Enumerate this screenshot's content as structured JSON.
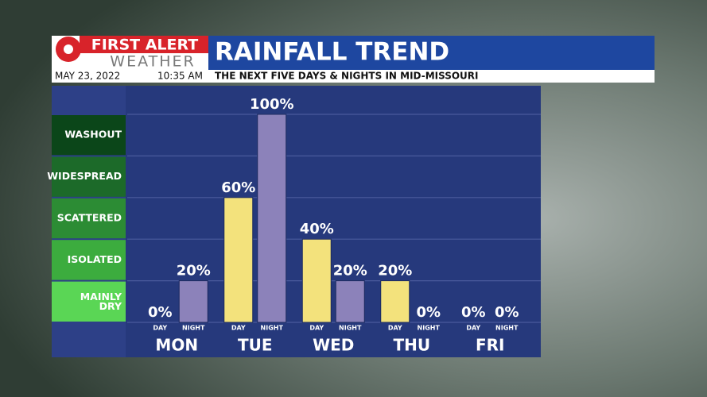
{
  "header": {
    "logo_top": "FIRST ALERT",
    "logo_bottom": "WEATHER",
    "date": "MAY 23, 2022",
    "time": "10:35 AM",
    "subtitle": "THE NEXT FIVE DAYS & NIGHTS IN MID-MISSOURI"
  },
  "chart_data": {
    "type": "bar",
    "title": "RAINFALL TREND",
    "categories": [
      "MON",
      "TUE",
      "WED",
      "THU",
      "FRI"
    ],
    "series": [
      {
        "name": "DAY",
        "color": "#f3e27c",
        "values": [
          0,
          60,
          40,
          20,
          0
        ],
        "value_labels": [
          "0%",
          "60%",
          "40%",
          "20%",
          "0%"
        ]
      },
      {
        "name": "NIGHT",
        "color": "#8c82ba",
        "values": [
          20,
          100,
          20,
          0,
          0
        ],
        "value_labels": [
          "20%",
          "100%",
          "20%",
          "0%",
          "0%"
        ]
      }
    ],
    "ylim": [
      0,
      100
    ],
    "yticks": [
      0,
      20,
      40,
      60,
      80,
      100
    ],
    "grid": true,
    "levels": [
      {
        "label": "MAINLY DRY",
        "color": "#5ad655"
      },
      {
        "label": "ISOLATED",
        "color": "#3cac3e"
      },
      {
        "label": "SCATTERED",
        "color": "#2c8c34"
      },
      {
        "label": "WIDESPREAD",
        "color": "#1c6a29"
      },
      {
        "label": "WASHOUT",
        "color": "#0b4619"
      }
    ]
  }
}
